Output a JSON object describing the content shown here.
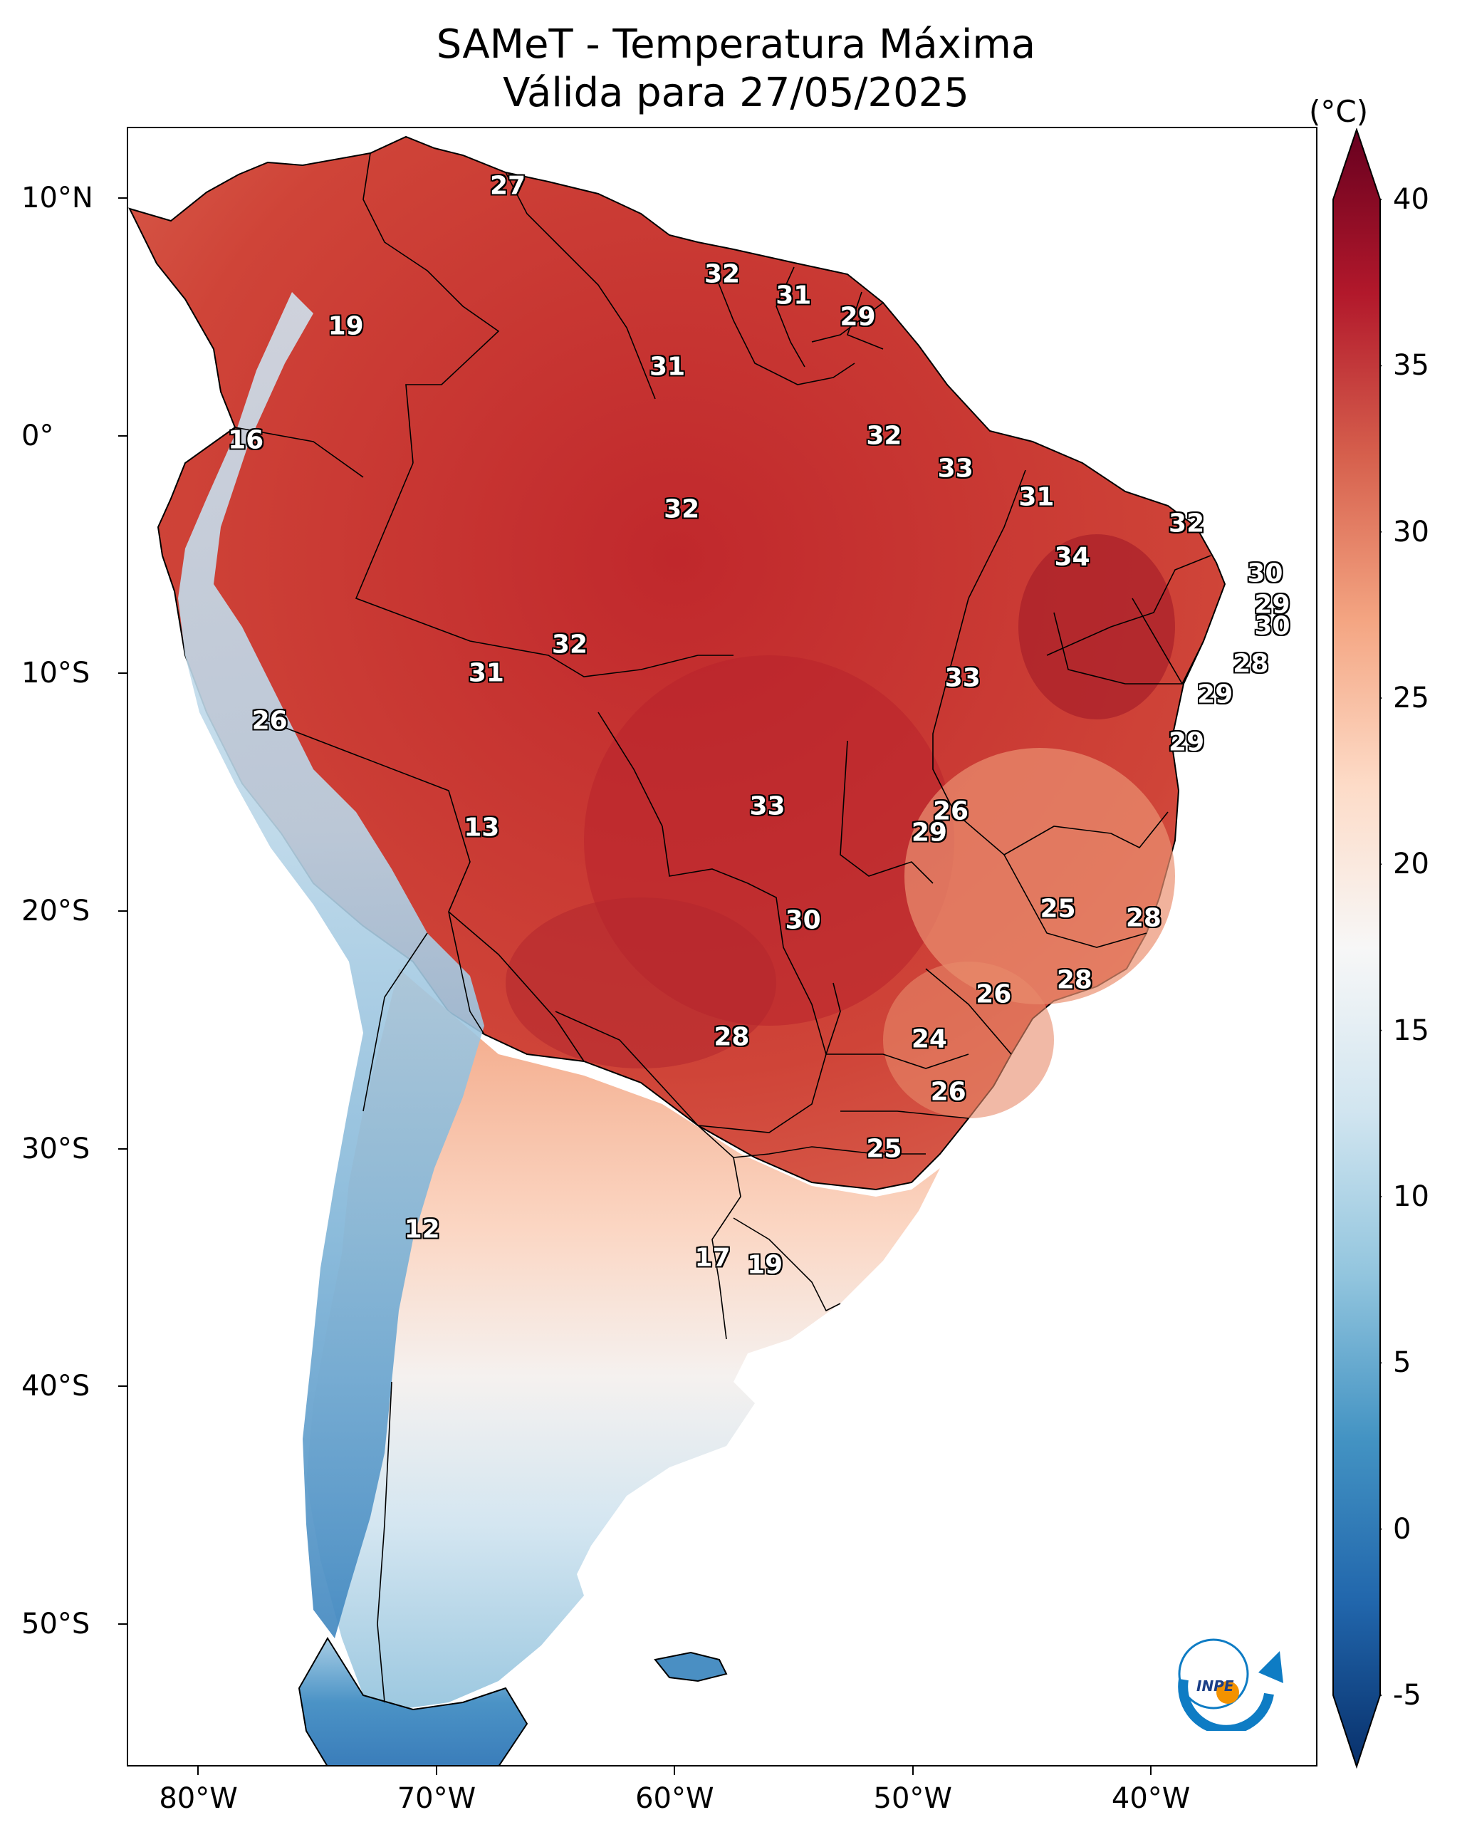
{
  "title": {
    "line1": "SAMeT - Temperatura Máxima",
    "line2": "Válida para 27/05/2025"
  },
  "axes": {
    "lat_ticks": [
      {
        "value": 10,
        "label": "10°N"
      },
      {
        "value": 0,
        "label": "0°"
      },
      {
        "value": -10,
        "label": "10°S"
      },
      {
        "value": -20,
        "label": "20°S"
      },
      {
        "value": -30,
        "label": "30°S"
      },
      {
        "value": -40,
        "label": "40°S"
      },
      {
        "value": -50,
        "label": "50°S"
      }
    ],
    "lon_ticks": [
      {
        "value": -80,
        "label": "80°W"
      },
      {
        "value": -70,
        "label": "70°W"
      },
      {
        "value": -60,
        "label": "60°W"
      },
      {
        "value": -50,
        "label": "50°W"
      },
      {
        "value": -40,
        "label": "40°W"
      }
    ],
    "lon_range": [
      -83,
      -33
    ],
    "lat_range": [
      -56,
      13
    ]
  },
  "colorbar": {
    "unit": "(°C)",
    "range": [
      -5,
      40
    ],
    "ticks": [
      "-5",
      "0",
      "5",
      "10",
      "15",
      "20",
      "25",
      "30",
      "35",
      "40"
    ],
    "colormap": "RdBu_r",
    "colors": [
      "#08306b",
      "#2166ac",
      "#4393c3",
      "#92c5de",
      "#d1e5f0",
      "#f7f7f7",
      "#fddbc7",
      "#f4a582",
      "#d6604d",
      "#b2182b",
      "#67001f"
    ]
  },
  "labels": [
    {
      "lon": -67.0,
      "lat": 10.5,
      "text": "27"
    },
    {
      "lon": -58.0,
      "lat": 6.8,
      "text": "32"
    },
    {
      "lon": -55.0,
      "lat": 5.9,
      "text": "31"
    },
    {
      "lon": -52.3,
      "lat": 5.0,
      "text": "29"
    },
    {
      "lon": -73.8,
      "lat": 4.6,
      "text": "19"
    },
    {
      "lon": -60.3,
      "lat": 2.9,
      "text": "31"
    },
    {
      "lon": -78.0,
      "lat": -0.2,
      "text": "16"
    },
    {
      "lon": -51.2,
      "lat": 0.0,
      "text": "32"
    },
    {
      "lon": -48.2,
      "lat": -1.4,
      "text": "33"
    },
    {
      "lon": -59.7,
      "lat": -3.1,
      "text": "32"
    },
    {
      "lon": -44.8,
      "lat": -2.6,
      "text": "31"
    },
    {
      "lon": -38.5,
      "lat": -3.7,
      "text": "32"
    },
    {
      "lon": -43.3,
      "lat": -5.1,
      "text": "34"
    },
    {
      "lon": -35.2,
      "lat": -5.8,
      "text": "30"
    },
    {
      "lon": -34.9,
      "lat": -7.1,
      "text": "29"
    },
    {
      "lon": -34.9,
      "lat": -8.0,
      "text": "30"
    },
    {
      "lon": -64.4,
      "lat": -8.8,
      "text": "32"
    },
    {
      "lon": -35.8,
      "lat": -9.6,
      "text": "28"
    },
    {
      "lon": -67.9,
      "lat": -10.0,
      "text": "31"
    },
    {
      "lon": -47.9,
      "lat": -10.2,
      "text": "33"
    },
    {
      "lon": -37.3,
      "lat": -10.9,
      "text": "29"
    },
    {
      "lon": -77.0,
      "lat": -12.0,
      "text": "26"
    },
    {
      "lon": -38.5,
      "lat": -12.9,
      "text": "29"
    },
    {
      "lon": -56.1,
      "lat": -15.6,
      "text": "33"
    },
    {
      "lon": -48.4,
      "lat": -15.8,
      "text": "26"
    },
    {
      "lon": -49.3,
      "lat": -16.7,
      "text": "29"
    },
    {
      "lon": -68.1,
      "lat": -16.5,
      "text": "13"
    },
    {
      "lon": -43.9,
      "lat": -19.9,
      "text": "25"
    },
    {
      "lon": -40.3,
      "lat": -20.3,
      "text": "28"
    },
    {
      "lon": -54.6,
      "lat": -20.4,
      "text": "30"
    },
    {
      "lon": -43.2,
      "lat": -22.9,
      "text": "28"
    },
    {
      "lon": -46.6,
      "lat": -23.5,
      "text": "26"
    },
    {
      "lon": -57.6,
      "lat": -25.3,
      "text": "28"
    },
    {
      "lon": -49.3,
      "lat": -25.4,
      "text": "24"
    },
    {
      "lon": -48.5,
      "lat": -27.6,
      "text": "26"
    },
    {
      "lon": -51.2,
      "lat": -30.0,
      "text": "25"
    },
    {
      "lon": -70.6,
      "lat": -33.4,
      "text": "12"
    },
    {
      "lon": -58.4,
      "lat": -34.6,
      "text": "17"
    },
    {
      "lon": -56.2,
      "lat": -34.9,
      "text": "19"
    }
  ],
  "logo": {
    "text": "INPE",
    "ring_color": "#0e7cc4",
    "dot_color": "#f39200"
  }
}
